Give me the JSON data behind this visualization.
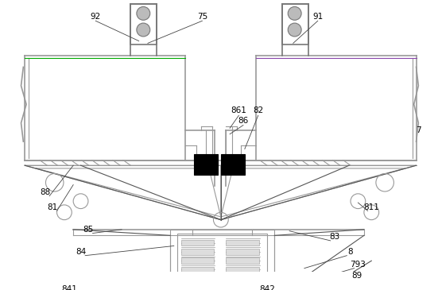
{
  "bg_color": "#ffffff",
  "lc": "#999999",
  "lc2": "#777777",
  "dk": "#555555",
  "bk": "#000000",
  "gray_fill": "#bbbbbb",
  "light_gray": "#dddddd",
  "green_line": "#00aa00",
  "purple_line": "#8844aa",
  "figsize": [
    5.51,
    3.65
  ],
  "dpi": 100
}
